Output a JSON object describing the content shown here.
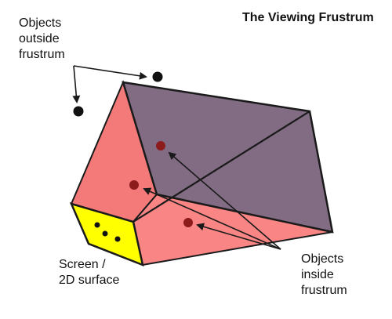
{
  "title": "The Viewing Frustrum",
  "labels": {
    "outside_line1": "Objects",
    "outside_line2": "outside",
    "outside_line3": "frustrum",
    "inside_line1": "Objects",
    "inside_line2": "inside",
    "inside_line3": "frustrum",
    "screen_line1": "Screen /",
    "screen_line2": "2D surface"
  },
  "colors": {
    "frustum_side": "#f98585",
    "frustum_top": "#f47a7a",
    "far_plane": "#826c84",
    "screen": "#ffff00",
    "outline": "#1a1a1a",
    "inside_dot": "#8c1c1c",
    "outside_dot": "#111111"
  }
}
